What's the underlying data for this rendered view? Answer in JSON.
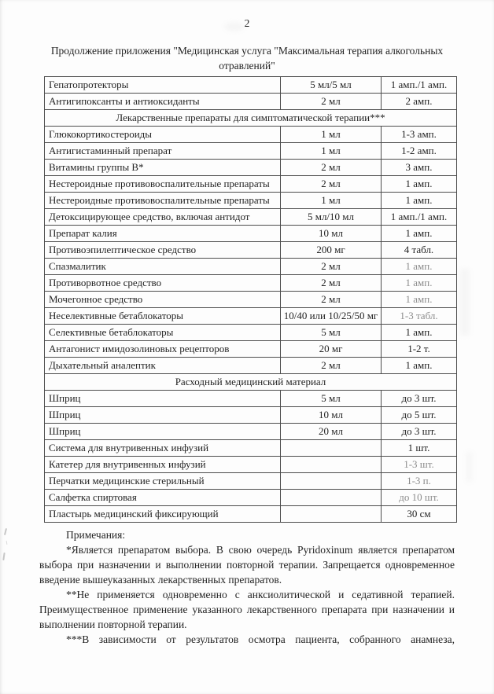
{
  "page": {
    "number": "2",
    "title": "Продолжение приложения \"Медицинская услуга \"Максимальная терапия алкогольных отравлений\""
  },
  "table": {
    "rows": [
      {
        "type": "data",
        "name": "Гепатопротекторы",
        "dose": "5 мл/5 мл",
        "qty": "1 амп./1 амп."
      },
      {
        "type": "data",
        "name": "Антигипоксанты и антиоксиданты",
        "dose": "2 мл",
        "qty": "2 амп."
      },
      {
        "type": "section",
        "label": "Лекарственные препараты для симптоматической терапии***"
      },
      {
        "type": "data",
        "name": "Глюкокортикостероиды",
        "dose": "1 мл",
        "qty": "1-3 амп."
      },
      {
        "type": "data",
        "name": "Антигистаминный препарат",
        "dose": "1 мл",
        "qty": "1-2 амп."
      },
      {
        "type": "data",
        "name": "Витамины группы В*",
        "dose": "2 мл",
        "qty": "3 амп."
      },
      {
        "type": "data",
        "name": "Нестероидные противовоспалительные препараты",
        "dose": "2 мл",
        "qty": "1 амп."
      },
      {
        "type": "data",
        "name": "Нестероидные противовоспалительные препараты",
        "dose": "1 мл",
        "qty": "1 амп."
      },
      {
        "type": "data",
        "name": "Детоксицирующее средство, включая антидот",
        "dose": "5 мл/10 мл",
        "qty": "1 амп./1 амп."
      },
      {
        "type": "data",
        "name": "Препарат калия",
        "dose": "10 мл",
        "qty": "1 амп."
      },
      {
        "type": "data",
        "name": "Противоэпилептическое средство",
        "dose": "200 мг",
        "qty": "4 табл."
      },
      {
        "type": "data",
        "name": "Спазмалитик",
        "dose": "2 мл",
        "qty": "1 амп.",
        "dim": true
      },
      {
        "type": "data",
        "name": "Противорвотное средство",
        "dose": "2 мл",
        "qty": "1 амп.",
        "dim": true
      },
      {
        "type": "data",
        "name": "Мочегонное средство",
        "dose": "2 мл",
        "qty": "1 амп.",
        "dim": true
      },
      {
        "type": "data",
        "name": "Неселективные бетаблокаторы",
        "dose": "10/40 или 10/25/50 мг",
        "qty": "1-3 табл.",
        "dim": true
      },
      {
        "type": "data",
        "name": "Селективные бетаблокаторы",
        "dose": "5 мл",
        "qty": "1 амп."
      },
      {
        "type": "data",
        "name": "Антагонист имидозолиновых рецепторов",
        "dose": "20 мг",
        "qty": "1-2 т."
      },
      {
        "type": "data",
        "name": "Дыхательный аналептик",
        "dose": "2 мл",
        "qty": "1 амп."
      },
      {
        "type": "section",
        "label": "Расходный медицинский материал"
      },
      {
        "type": "data",
        "name": "Шприц",
        "dose": "5 мл",
        "qty": "до 3 шт."
      },
      {
        "type": "data",
        "name": "Шприц",
        "dose": "10 мл",
        "qty": "до 5 шт."
      },
      {
        "type": "data",
        "name": "Шприц",
        "dose": "20 мл",
        "qty": "до 3 шт."
      },
      {
        "type": "data",
        "name": "Система для внутривенных инфузий",
        "dose": "",
        "qty": "1 шт."
      },
      {
        "type": "data",
        "name": "Катетер для внутривенных инфузий",
        "dose": "",
        "qty": "1-3 шт.",
        "dim": true
      },
      {
        "type": "data",
        "name": "Перчатки медицинские стерильный",
        "dose": "",
        "qty": "1-3 п.",
        "dim": true
      },
      {
        "type": "data",
        "name": "Салфетка спиртовая",
        "dose": "",
        "qty": "до 10 шт.",
        "dim": true
      },
      {
        "type": "data",
        "name": "Пластырь медицинский фиксирующий",
        "dose": "",
        "qty": "30 см"
      }
    ]
  },
  "notes": {
    "heading": "Примечания:",
    "paragraphs": [
      {
        "text": "*Является препаратом выбора. В свою очередь Pyridoxinum является препаратом выбора при назначении и выполнении повторной терапии. Запрещается одновременное введение вышеуказанных лекарственных препаратов."
      },
      {
        "text": "**Не применяется одновременно с анксиолитической и седативной терапией. Преимущественное применение указанного лекарственного препарата при назначении и выполнении повторной терапии."
      },
      {
        "text": "***В зависимости от результатов осмотра пациента, собранного анамнеза,",
        "stretch": true
      }
    ]
  }
}
